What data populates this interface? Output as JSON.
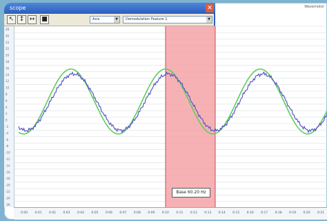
{
  "window": {
    "title": "scope",
    "close_glyph": "✕",
    "top_right_text": "Wavemotor"
  },
  "toolbar": {
    "buttons": [
      {
        "icon": "cursor-arrow-icon",
        "glyph": "↖"
      },
      {
        "icon": "vertical-cursor-icon",
        "glyph": "↕"
      },
      {
        "icon": "horizontal-cursor-icon",
        "glyph": "↔"
      },
      {
        "icon": "stop-icon",
        "glyph": "■"
      }
    ],
    "select_1": "Axis",
    "select_2": "Demodulation Feature 1"
  },
  "readout": {
    "text": "Base 60.20 Hz"
  },
  "plot": {
    "highlight_color": "#f4a3a8",
    "green_series_color": "#5ccf5a",
    "blue_series_color": "#5a56c8",
    "grid_color": "#d9dde2",
    "cycles_visible": 3.3
  },
  "bottom_axis": {
    "ticks": [
      "0:00",
      "0:01",
      "0:02",
      "0:03",
      "0:04",
      "0:05",
      "0:06",
      "0:07",
      "0:08",
      "0:09",
      "0:10",
      "0:11",
      "0:12",
      "0:13",
      "0:14",
      "0:15",
      "0:16",
      "0:17",
      "0:18",
      "0:19",
      "0:20",
      "0:21"
    ]
  },
  "left_axis": {
    "ticks": [
      "28",
      "26",
      "24",
      "22",
      "20",
      "18",
      "16",
      "14",
      "12",
      "10",
      "8",
      "6",
      "4",
      "2",
      "0",
      "-2",
      "-4",
      "-6",
      "-8",
      "-10",
      "-12",
      "-14",
      "-16",
      "-18",
      "-20",
      "-22",
      "-24",
      "-26"
    ]
  }
}
